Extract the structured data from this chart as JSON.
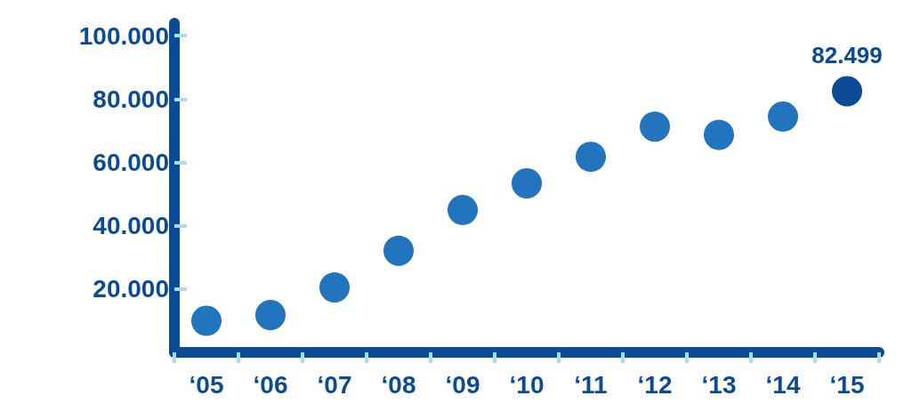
{
  "chart_data": {
    "type": "scatter",
    "categories": [
      "‘05",
      "‘06",
      "‘07",
      "‘08",
      "‘09",
      "‘10",
      "‘11",
      "‘12",
      "‘13",
      "‘14",
      "‘15"
    ],
    "values": [
      10000,
      11800,
      20500,
      32100,
      45000,
      53400,
      61800,
      71300,
      68700,
      74500,
      82499
    ],
    "colors": [
      "#2174bd",
      "#2174bd",
      "#2174bd",
      "#2174bd",
      "#2174bd",
      "#2174bd",
      "#2174bd",
      "#2174bd",
      "#2174bd",
      "#2174bd",
      "#0b4a94"
    ],
    "value_labels": [
      null,
      null,
      null,
      null,
      null,
      null,
      null,
      null,
      null,
      null,
      "82.499"
    ],
    "ylim": [
      0,
      104000
    ],
    "yticks": [
      {
        "value": 20000,
        "label": "20.000"
      },
      {
        "value": 40000,
        "label": "40.000"
      },
      {
        "value": 60000,
        "label": "60.000"
      },
      {
        "value": 80000,
        "label": "80.000"
      },
      {
        "value": 100000,
        "label": "100.000"
      }
    ],
    "grid": false,
    "marker": "circle"
  }
}
